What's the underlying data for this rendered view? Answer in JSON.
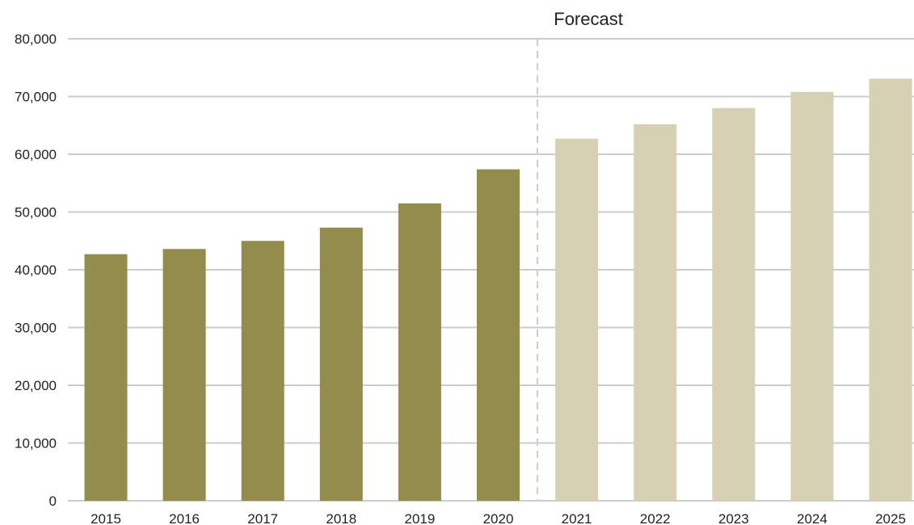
{
  "chart_data": {
    "type": "bar",
    "title": "",
    "xlabel": "",
    "ylabel": "",
    "categories": [
      "2015",
      "2016",
      "2017",
      "2018",
      "2019",
      "2020",
      "2021",
      "2022",
      "2023",
      "2024",
      "2025"
    ],
    "values": [
      42700,
      43600,
      45000,
      47300,
      51500,
      57400,
      62700,
      65200,
      68000,
      70800,
      73100
    ],
    "forecast": [
      false,
      false,
      false,
      false,
      false,
      false,
      true,
      true,
      true,
      true,
      true
    ],
    "ylim": [
      0,
      80000
    ],
    "yticks": [
      0,
      10000,
      20000,
      30000,
      40000,
      50000,
      60000,
      70000,
      80000
    ],
    "ytick_labels": [
      "0",
      "10,000",
      "20,000",
      "30,000",
      "40,000",
      "50,000",
      "60,000",
      "70,000",
      "80,000"
    ],
    "grid": true,
    "annotation": {
      "text": "Forecast",
      "after_category": "2020"
    },
    "colors": {
      "actual": "#938c4c",
      "forecast": "#d7d1b4",
      "grid": "#cccccc",
      "divider": "#cccccc",
      "text": "#222222"
    }
  }
}
